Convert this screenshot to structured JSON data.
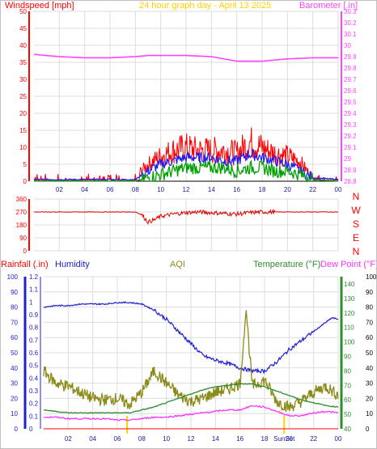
{
  "colors": {
    "wind": "#ff0000",
    "gust": "#ff0000",
    "avg_wind": "#1a1aff",
    "wind_green": "#00a000",
    "barometer": "#ff44ff",
    "direction": "#e00000",
    "humidity": "#2020d0",
    "aqi": "#8b8b1a",
    "temperature": "#2e8b2e",
    "dew_point": "#ff33ff",
    "rainfall": "#ff0000",
    "sun_marker": "#ffd000",
    "grid": "#dcdcdc",
    "axis_text": "#ff0000"
  },
  "chart_data": [
    {
      "type": "line",
      "panel": "wind-barometer",
      "title": "24 hour graph day - April 13 2025",
      "ylabel_left": "Windspeed [mph]",
      "ylabel_right": "Barometer [.in]",
      "ylim_left": [
        0,
        50
      ],
      "ylim_right": [
        28.8,
        30.3
      ],
      "yticks_left": [
        "0",
        "5",
        "10",
        "15",
        "20",
        "25",
        "30",
        "35",
        "40",
        "45",
        "50"
      ],
      "yticks_right": [
        "28.8",
        "28.9",
        "29",
        "29.1",
        "29.2",
        "29.3",
        "29.4",
        "29.5",
        "29.6",
        "29.7",
        "29.8",
        "29.9",
        "30",
        "30.1",
        "30.2",
        "30.3"
      ],
      "xlim": [
        0,
        24
      ],
      "xticks": [
        "02",
        "04",
        "06",
        "08",
        "10",
        "12",
        "14",
        "16",
        "18",
        "20",
        "22",
        "00"
      ],
      "grid": true,
      "series": [
        {
          "key": "barometer",
          "axis": "right",
          "x": [
            0,
            2,
            4,
            6,
            8,
            9,
            10,
            12,
            14,
            15,
            16,
            17,
            18,
            20,
            22,
            24
          ],
          "values": [
            29.92,
            29.9,
            29.89,
            29.89,
            29.9,
            29.91,
            29.91,
            29.91,
            29.9,
            29.88,
            29.86,
            29.86,
            29.86,
            29.88,
            29.89,
            29.89
          ]
        },
        {
          "key": "gust",
          "axis": "left",
          "x": [
            0,
            1,
            2,
            3,
            4,
            5,
            6,
            7,
            8,
            8.5,
            9,
            10,
            11,
            12,
            13,
            14,
            15,
            16,
            16.5,
            17,
            17.5,
            18,
            19,
            20,
            21,
            21.5,
            22,
            23,
            24
          ],
          "values": [
            1,
            1,
            2,
            1,
            1,
            1,
            1,
            1,
            2,
            4,
            6,
            9,
            11,
            12,
            11,
            11,
            11,
            10,
            12,
            14,
            13,
            12,
            10,
            9,
            7,
            4,
            2,
            1,
            1
          ]
        },
        {
          "key": "avg_wind",
          "axis": "left",
          "x": [
            0,
            8,
            9,
            10,
            11,
            12,
            13,
            14,
            15,
            16,
            17,
            18,
            19,
            20,
            21,
            22,
            24
          ],
          "values": [
            0.5,
            0.5,
            3,
            5,
            6,
            7,
            7,
            7,
            6,
            6,
            8,
            7,
            6,
            5,
            3,
            1,
            0.5
          ]
        },
        {
          "key": "wind_green",
          "axis": "left",
          "x": [
            0,
            8,
            9,
            10,
            11,
            12,
            13,
            14,
            15,
            16,
            17,
            18,
            19,
            20,
            21,
            22,
            24
          ],
          "values": [
            0,
            0,
            1,
            2,
            3,
            4,
            4,
            4,
            4,
            3,
            4,
            4,
            3,
            3,
            2,
            0.5,
            0
          ]
        }
      ]
    },
    {
      "type": "line",
      "panel": "wind-direction",
      "ylim": [
        0,
        360
      ],
      "yticks": [
        "0",
        "90",
        "180",
        "270",
        "360"
      ],
      "compass_labels": [
        "N",
        "W",
        "S",
        "E",
        "N"
      ],
      "xlim": [
        0,
        24
      ],
      "series": [
        {
          "key": "direction",
          "x": [
            0,
            2,
            4,
            6,
            8,
            8.5,
            9,
            9.5,
            10,
            11,
            12,
            13,
            14,
            15,
            16,
            17,
            18,
            19,
            20,
            22,
            24
          ],
          "values": [
            270,
            270,
            270,
            270,
            270,
            250,
            200,
            215,
            240,
            255,
            265,
            270,
            265,
            260,
            255,
            265,
            270,
            270,
            270,
            270,
            270
          ]
        }
      ]
    },
    {
      "type": "line",
      "panel": "rain-humidity-aqi-temp",
      "labels": [
        "Rainfall (.in)",
        "Humidity",
        "AQI",
        "Temperature (°F)",
        "Dew Point (°F)"
      ],
      "ylim_rain": [
        0,
        1.2
      ],
      "yticks_rain": [
        "0",
        "0.1",
        "0.2",
        "0.3",
        "0.4",
        "0.5",
        "0.6",
        "0.7",
        "0.8",
        "0.9",
        "1",
        "1.1",
        "1.2"
      ],
      "ylim_humidity": [
        0,
        100
      ],
      "yticks_humidity": [
        "0",
        "10",
        "20",
        "30",
        "40",
        "50",
        "60",
        "70",
        "80",
        "90",
        "100"
      ],
      "ylim_temp": [
        40,
        145
      ],
      "yticks_temp": [
        "40",
        "50",
        "60",
        "70",
        "80",
        "90",
        "100",
        "110",
        "120",
        "130",
        "140"
      ],
      "ylim_aqi": [
        0,
        100
      ],
      "yticks_aqi": [
        "0",
        "10",
        "20",
        "30",
        "40",
        "50",
        "60",
        "70",
        "80",
        "90",
        "100"
      ],
      "xlim": [
        0,
        24
      ],
      "xticks": [
        "02",
        "04",
        "06",
        "08",
        "10",
        "12",
        "14",
        "16",
        "18",
        "20",
        "22",
        "00"
      ],
      "sun_markers": [
        {
          "x": 6.8,
          "label": ""
        },
        {
          "x": 19.6,
          "label": "SunSet"
        }
      ],
      "series": [
        {
          "key": "humidity",
          "x": [
            0,
            1,
            2,
            3,
            4,
            5,
            6,
            7,
            8,
            9,
            10,
            11,
            12,
            13,
            14,
            15,
            16,
            17,
            18,
            19,
            20,
            21,
            22,
            23,
            23.5,
            24
          ],
          "values": [
            80,
            81,
            81,
            82,
            82,
            82,
            83,
            83,
            82,
            78,
            72,
            64,
            56,
            48,
            45,
            43,
            40,
            38,
            38,
            44,
            52,
            58,
            64,
            70,
            73,
            72
          ]
        },
        {
          "key": "aqi",
          "x": [
            0,
            1,
            2,
            3,
            4,
            5,
            6,
            7,
            8,
            9,
            10,
            11,
            12,
            13,
            14,
            15,
            16,
            16.5,
            17,
            18,
            19,
            20,
            21,
            22,
            23,
            24
          ],
          "values": [
            38,
            30,
            28,
            24,
            20,
            19,
            20,
            16,
            24,
            38,
            30,
            22,
            18,
            20,
            24,
            26,
            30,
            78,
            28,
            32,
            18,
            14,
            18,
            24,
            28,
            22
          ]
        },
        {
          "key": "temperature",
          "x": [
            0,
            1,
            2,
            3,
            4,
            5,
            6,
            7,
            8,
            9,
            10,
            11,
            12,
            13,
            14,
            15,
            16,
            17,
            18,
            19,
            20,
            21,
            22,
            23,
            24
          ],
          "values": [
            53,
            52,
            51,
            51,
            51,
            51,
            51,
            51,
            53,
            55,
            58,
            61,
            64,
            67,
            69,
            70,
            71,
            71,
            69,
            66,
            63,
            60,
            58,
            56,
            55
          ]
        },
        {
          "key": "dew_point",
          "x": [
            0,
            1,
            2,
            3,
            4,
            5,
            6,
            7,
            8,
            9,
            10,
            11,
            12,
            13,
            14,
            15,
            16,
            17,
            18,
            19,
            20,
            21,
            22,
            23,
            24
          ],
          "values": [
            48,
            48,
            47,
            47,
            47,
            47,
            46,
            46,
            47,
            48,
            48,
            49,
            50,
            51,
            52,
            53,
            53,
            56,
            55,
            52,
            49,
            49,
            51,
            52,
            51
          ]
        },
        {
          "key": "rainfall",
          "x": [
            0,
            24
          ],
          "values": [
            0,
            0
          ]
        }
      ]
    }
  ]
}
